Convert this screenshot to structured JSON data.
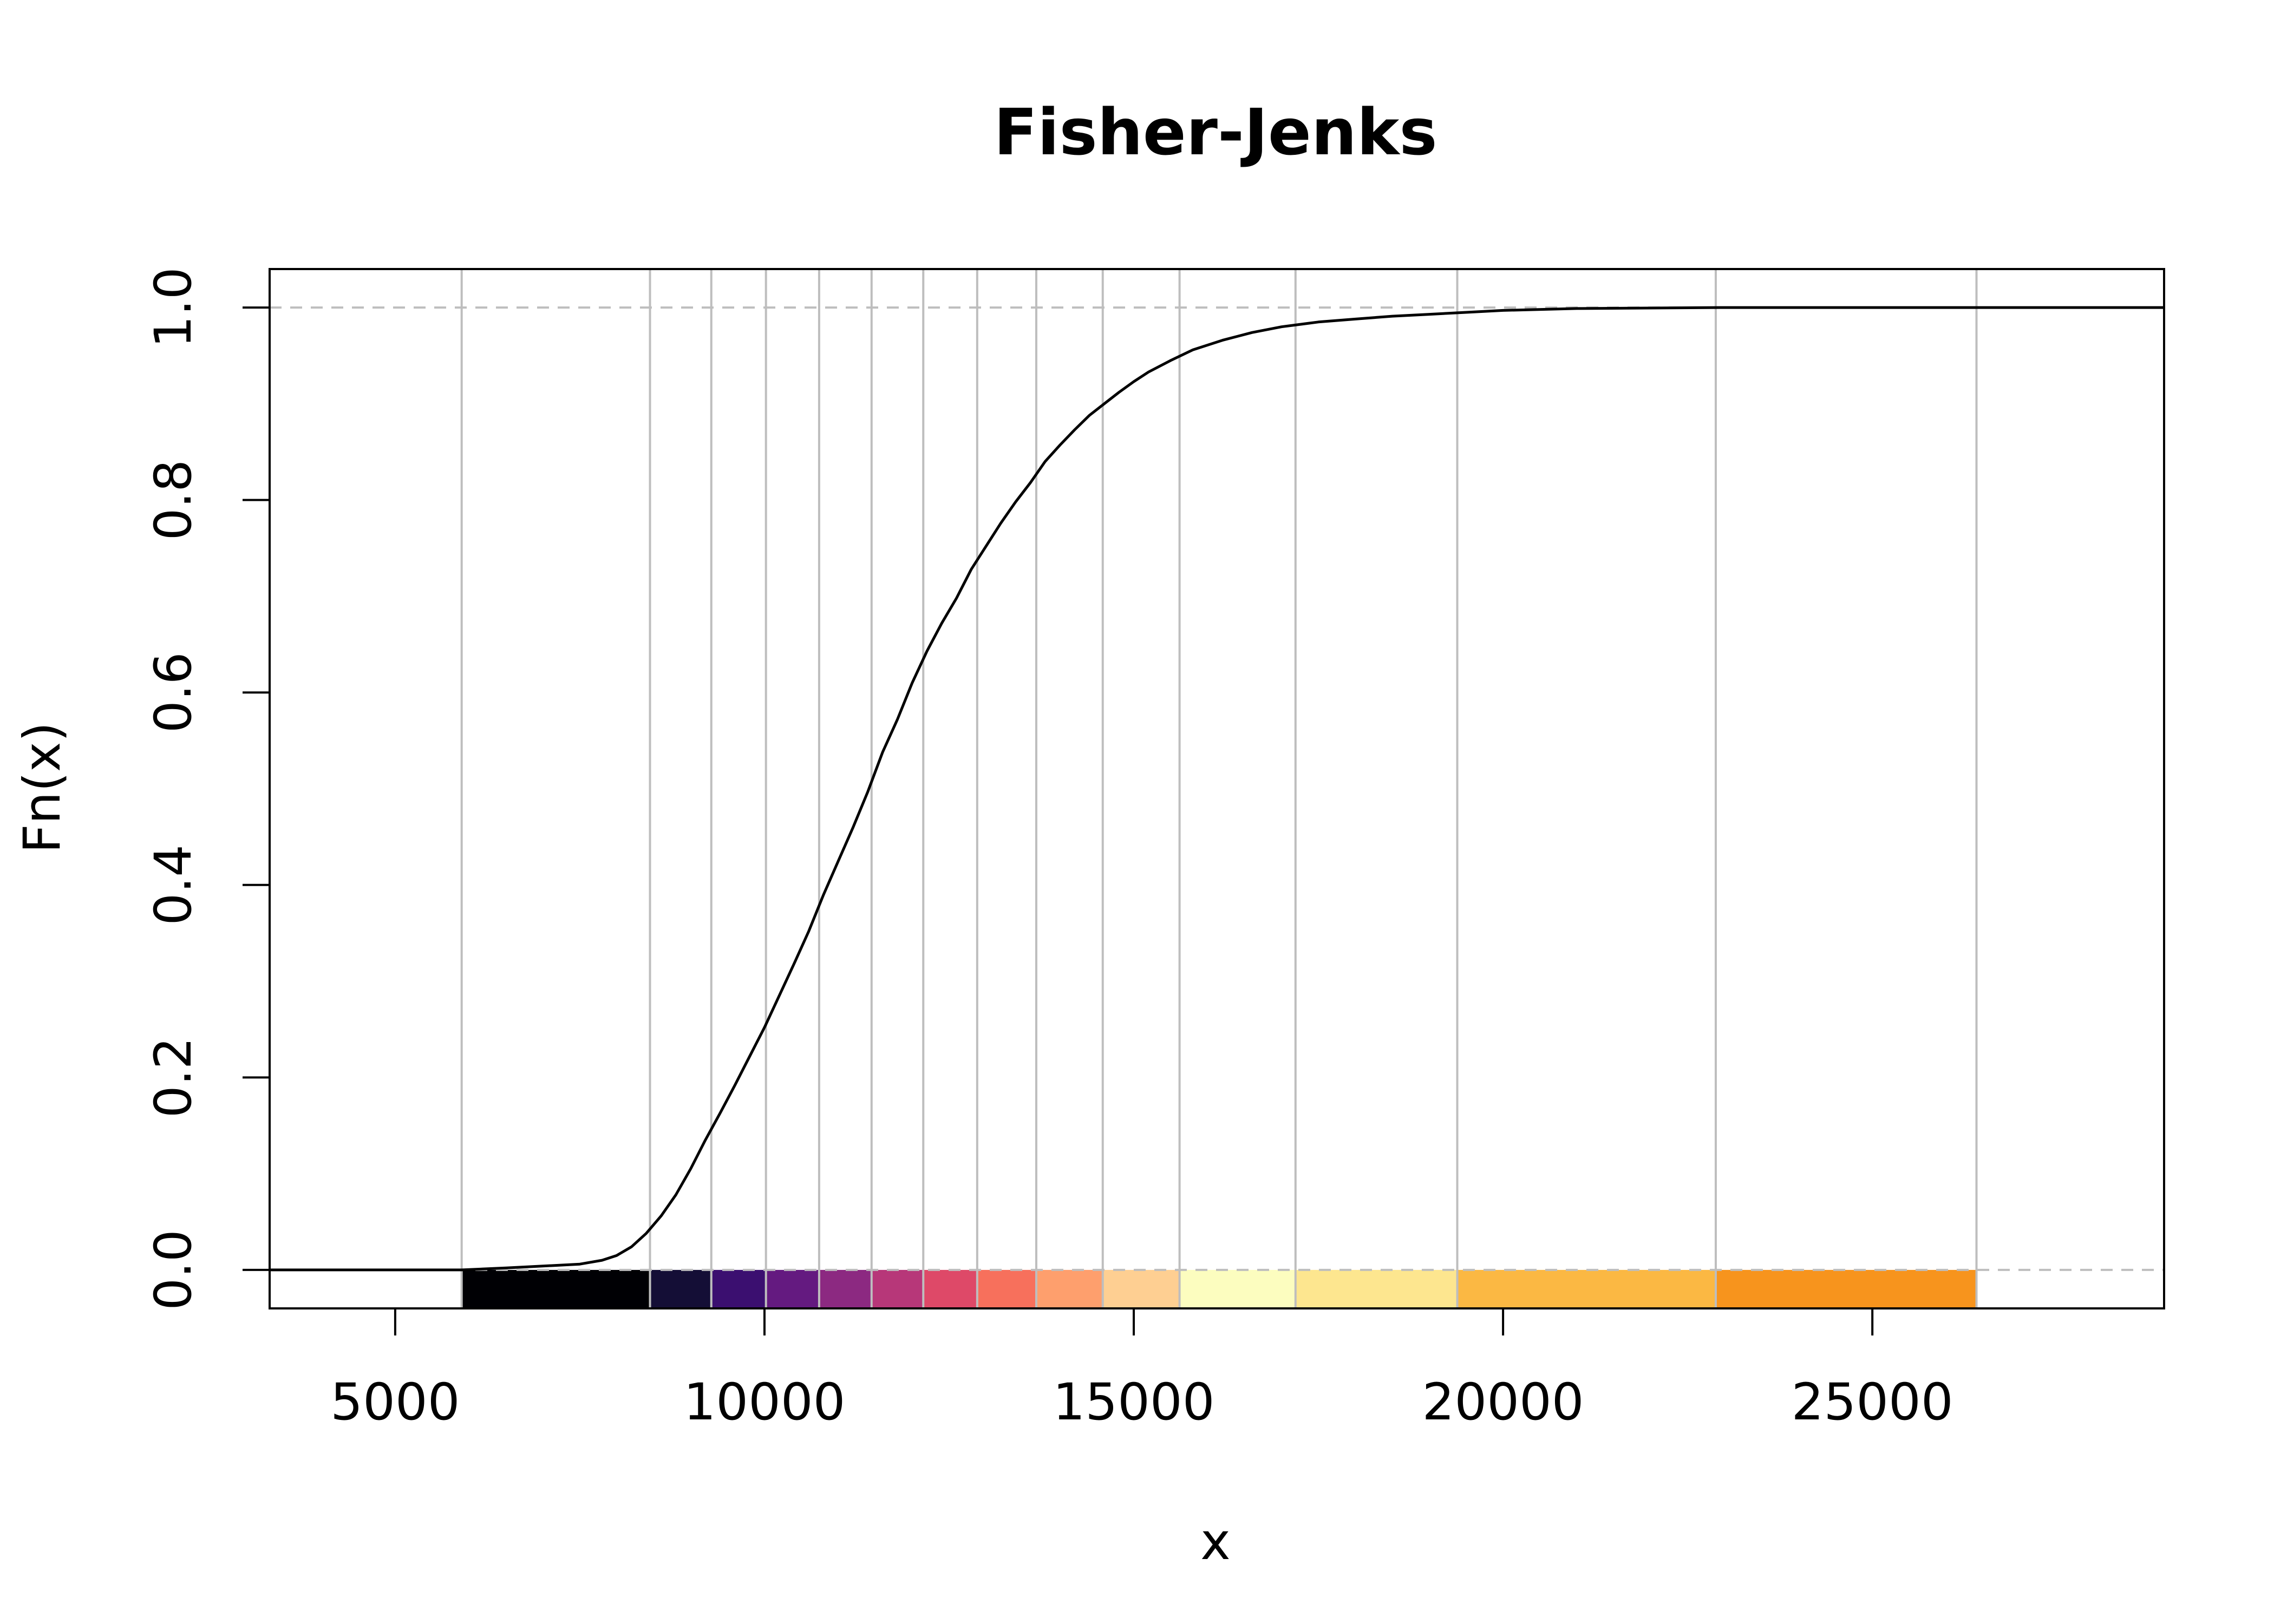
{
  "chart_data": {
    "type": "line",
    "title": "Fisher-Jenks",
    "xlabel": "x",
    "ylabel": "Fn(x)",
    "xlim": [
      3300,
      28950
    ],
    "ylim": [
      -0.04,
      1.04
    ],
    "x_ticks": [
      5000,
      10000,
      15000,
      20000,
      25000
    ],
    "x_tick_labels": [
      "5000",
      "10000",
      "15000",
      "20000",
      "25000"
    ],
    "y_ticks": [
      0.0,
      0.2,
      0.4,
      0.6,
      0.8,
      1.0
    ],
    "y_tick_labels": [
      "0.0",
      "0.2",
      "0.4",
      "0.6",
      "0.8",
      "1.0"
    ],
    "reference_lines_y": [
      0,
      1
    ],
    "class_breaks": [
      5900,
      8450,
      9280,
      10020,
      10740,
      11450,
      12150,
      12880,
      13680,
      14580,
      15620,
      17190,
      19380,
      22880,
      26410
    ],
    "class_colors": [
      "#000004",
      "#140E36",
      "#3B0F70",
      "#641A80",
      "#8C2981",
      "#B73779",
      "#DE4968",
      "#F7705C",
      "#FE9F6D",
      "#FECF92",
      "#FCFDBF",
      "#FDE68F",
      "#FBB843",
      "#F7941D",
      "#EC6A3A"
    ],
    "ecdf": {
      "x": [
        3300,
        5900,
        6500,
        7000,
        7500,
        7800,
        8000,
        8200,
        8400,
        8600,
        8800,
        9000,
        9200,
        9400,
        9600,
        9800,
        10000,
        10200,
        10400,
        10600,
        10800,
        11000,
        11200,
        11400,
        11600,
        11800,
        12000,
        12200,
        12400,
        12600,
        12800,
        13000,
        13200,
        13400,
        13600,
        13800,
        14000,
        14200,
        14400,
        14600,
        14800,
        15000,
        15200,
        15500,
        15800,
        16200,
        16600,
        17000,
        17500,
        18000,
        18500,
        19000,
        19500,
        20000,
        21000,
        22000,
        23000,
        26410,
        28950
      ],
      "y": [
        0,
        0,
        0.002,
        0.004,
        0.006,
        0.01,
        0.015,
        0.024,
        0.038,
        0.056,
        0.078,
        0.105,
        0.135,
        0.163,
        0.192,
        0.222,
        0.252,
        0.285,
        0.318,
        0.352,
        0.39,
        0.425,
        0.46,
        0.497,
        0.538,
        0.572,
        0.61,
        0.643,
        0.672,
        0.698,
        0.728,
        0.752,
        0.776,
        0.798,
        0.818,
        0.84,
        0.857,
        0.873,
        0.888,
        0.9,
        0.912,
        0.923,
        0.933,
        0.945,
        0.956,
        0.966,
        0.974,
        0.98,
        0.985,
        0.988,
        0.991,
        0.993,
        0.995,
        0.997,
        0.999,
        0.9995,
        1.0,
        1.0,
        1.0
      ]
    },
    "grid": false,
    "legend": "none"
  }
}
